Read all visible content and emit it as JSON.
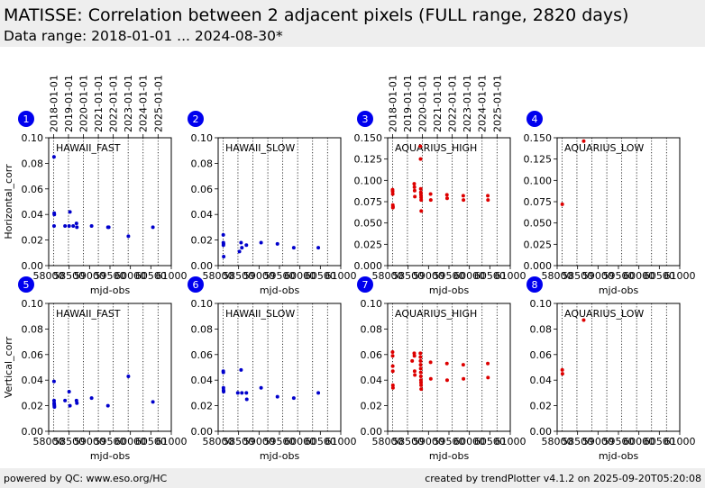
{
  "header": {
    "title": "MATISSE: Correlation between 2 adjacent pixels (FULL range, 2820 days)",
    "subtitle": "Data range: 2018-01-01 ... 2024-08-30*"
  },
  "footer": {
    "left": "powered by QC: www.eso.org/HC",
    "right": "created by trendPlotter v4.1.2 on 2025-09-20T05:20:08"
  },
  "colors": {
    "blue_series": "#0000cc",
    "red_series": "#dd0000",
    "badge": "#0000ee"
  },
  "chart_data": {
    "type": "scatter",
    "x_tick_labels": [
      "58000",
      "58500",
      "59000",
      "59500",
      "60000",
      "60500",
      "61000"
    ],
    "date_tick_labels": [
      "2018-01-01",
      "2019-01-01",
      "2020-01-01",
      "2021-01-01",
      "2022-01-01",
      "2023-01-01",
      "2024-01-01",
      "2025-01-01"
    ],
    "date_tick_mjd": [
      58119,
      58484,
      58849,
      59215,
      59580,
      59945,
      60310,
      60676
    ],
    "xlim": [
      58000,
      61000
    ],
    "xlabel": "mjd-obs",
    "row_ylabels": [
      "Horizontal_corr",
      "Vertical_corr"
    ],
    "panels": [
      {
        "badge": "1",
        "name": "HAWAII_FAST",
        "color": "blue",
        "ylim": [
          0,
          0.1
        ],
        "yticks": [
          "0.00",
          "0.02",
          "0.04",
          "0.06",
          "0.08",
          "0.10"
        ],
        "show_dates": true,
        "points": [
          [
            58130,
            0.085
          ],
          [
            58135,
            0.041
          ],
          [
            58138,
            0.04
          ],
          [
            58132,
            0.031
          ],
          [
            58400,
            0.031
          ],
          [
            58500,
            0.031
          ],
          [
            58520,
            0.042
          ],
          [
            58600,
            0.031
          ],
          [
            58680,
            0.033
          ],
          [
            58690,
            0.03
          ],
          [
            59050,
            0.031
          ],
          [
            59450,
            0.03
          ],
          [
            59470,
            0.03
          ],
          [
            59950,
            0.023
          ],
          [
            60550,
            0.03
          ]
        ]
      },
      {
        "badge": "2",
        "name": "HAWAII_SLOW",
        "color": "blue",
        "ylim": [
          0,
          0.1
        ],
        "yticks": [
          "0.00",
          "0.02",
          "0.04",
          "0.06",
          "0.08",
          "0.10"
        ],
        "show_dates": false,
        "points": [
          [
            58125,
            0.024
          ],
          [
            58127,
            0.018
          ],
          [
            58128,
            0.016
          ],
          [
            58130,
            0.017
          ],
          [
            58135,
            0.007
          ],
          [
            58520,
            0.011
          ],
          [
            58560,
            0.018
          ],
          [
            58580,
            0.014
          ],
          [
            58690,
            0.016
          ],
          [
            59050,
            0.018
          ],
          [
            59450,
            0.017
          ],
          [
            59850,
            0.014
          ],
          [
            60450,
            0.014
          ]
        ]
      },
      {
        "badge": "3",
        "name": "AQUARIUS_HIGH",
        "color": "red",
        "ylim": [
          0,
          0.15
        ],
        "yticks": [
          "0.000",
          "0.025",
          "0.050",
          "0.075",
          "0.100",
          "0.125",
          "0.150"
        ],
        "show_dates": true,
        "points": [
          [
            58120,
            0.089
          ],
          [
            58122,
            0.087
          ],
          [
            58124,
            0.084
          ],
          [
            58126,
            0.071
          ],
          [
            58128,
            0.068
          ],
          [
            58130,
            0.069
          ],
          [
            58650,
            0.096
          ],
          [
            58655,
            0.092
          ],
          [
            58660,
            0.088
          ],
          [
            58665,
            0.081
          ],
          [
            58800,
            0.14
          ],
          [
            58805,
            0.125
          ],
          [
            58810,
            0.09
          ],
          [
            58812,
            0.086
          ],
          [
            58815,
            0.083
          ],
          [
            58818,
            0.08
          ],
          [
            58820,
            0.077
          ],
          [
            58822,
            0.064
          ],
          [
            59050,
            0.084
          ],
          [
            59055,
            0.077
          ],
          [
            59450,
            0.083
          ],
          [
            59455,
            0.079
          ],
          [
            59850,
            0.082
          ],
          [
            59855,
            0.077
          ],
          [
            60450,
            0.082
          ],
          [
            60455,
            0.077
          ]
        ]
      },
      {
        "badge": "4",
        "name": "AQUARIUS_LOW",
        "color": "red",
        "ylim": [
          0,
          0.15
        ],
        "yticks": [
          "0.000",
          "0.025",
          "0.050",
          "0.075",
          "0.100",
          "0.125",
          "0.150"
        ],
        "show_dates": false,
        "points": [
          [
            58125,
            0.072
          ],
          [
            58650,
            0.146
          ]
        ]
      },
      {
        "badge": "5",
        "name": "HAWAII_FAST",
        "color": "blue",
        "ylim": [
          0,
          0.1
        ],
        "yticks": [
          "0.00",
          "0.02",
          "0.04",
          "0.06",
          "0.08",
          "0.10"
        ],
        "show_dates": false,
        "points": [
          [
            58130,
            0.039
          ],
          [
            58132,
            0.024
          ],
          [
            58134,
            0.022
          ],
          [
            58136,
            0.021
          ],
          [
            58138,
            0.02
          ],
          [
            58140,
            0.019
          ],
          [
            58400,
            0.024
          ],
          [
            58500,
            0.031
          ],
          [
            58520,
            0.02
          ],
          [
            58680,
            0.024
          ],
          [
            58690,
            0.022
          ],
          [
            59050,
            0.026
          ],
          [
            59450,
            0.02
          ],
          [
            59950,
            0.043
          ],
          [
            60550,
            0.023
          ]
        ]
      },
      {
        "badge": "6",
        "name": "HAWAII_SLOW",
        "color": "blue",
        "ylim": [
          0,
          0.1
        ],
        "yticks": [
          "0.00",
          "0.02",
          "0.04",
          "0.06",
          "0.08",
          "0.10"
        ],
        "show_dates": false,
        "points": [
          [
            58125,
            0.047
          ],
          [
            58127,
            0.046
          ],
          [
            58129,
            0.034
          ],
          [
            58131,
            0.032
          ],
          [
            58133,
            0.031
          ],
          [
            58480,
            0.03
          ],
          [
            58560,
            0.048
          ],
          [
            58580,
            0.03
          ],
          [
            58690,
            0.03
          ],
          [
            58700,
            0.025
          ],
          [
            59050,
            0.034
          ],
          [
            59450,
            0.027
          ],
          [
            59850,
            0.026
          ],
          [
            60450,
            0.03
          ]
        ]
      },
      {
        "badge": "7",
        "name": "AQUARIUS_HIGH",
        "color": "red",
        "ylim": [
          0,
          0.1
        ],
        "yticks": [
          "0.00",
          "0.02",
          "0.04",
          "0.06",
          "0.08",
          "0.10"
        ],
        "show_dates": false,
        "points": [
          [
            58120,
            0.062
          ],
          [
            58122,
            0.059
          ],
          [
            58124,
            0.051
          ],
          [
            58126,
            0.047
          ],
          [
            58128,
            0.036
          ],
          [
            58130,
            0.034
          ],
          [
            58600,
            0.055
          ],
          [
            58650,
            0.061
          ],
          [
            58655,
            0.059
          ],
          [
            58660,
            0.047
          ],
          [
            58665,
            0.044
          ],
          [
            58800,
            0.061
          ],
          [
            58802,
            0.058
          ],
          [
            58804,
            0.055
          ],
          [
            58806,
            0.052
          ],
          [
            58808,
            0.049
          ],
          [
            58810,
            0.046
          ],
          [
            58812,
            0.043
          ],
          [
            58814,
            0.04
          ],
          [
            58816,
            0.038
          ],
          [
            58818,
            0.036
          ],
          [
            58820,
            0.033
          ],
          [
            59050,
            0.054
          ],
          [
            59055,
            0.041
          ],
          [
            59450,
            0.053
          ],
          [
            59455,
            0.04
          ],
          [
            59850,
            0.052
          ],
          [
            59855,
            0.041
          ],
          [
            60450,
            0.053
          ],
          [
            60455,
            0.042
          ]
        ]
      },
      {
        "badge": "8",
        "name": "AQUARIUS_LOW",
        "color": "red",
        "ylim": [
          0,
          0.1
        ],
        "yticks": [
          "0.00",
          "0.02",
          "0.04",
          "0.06",
          "0.08",
          "0.10"
        ],
        "show_dates": false,
        "points": [
          [
            58125,
            0.048
          ],
          [
            58130,
            0.045
          ],
          [
            58650,
            0.087
          ]
        ]
      }
    ]
  }
}
